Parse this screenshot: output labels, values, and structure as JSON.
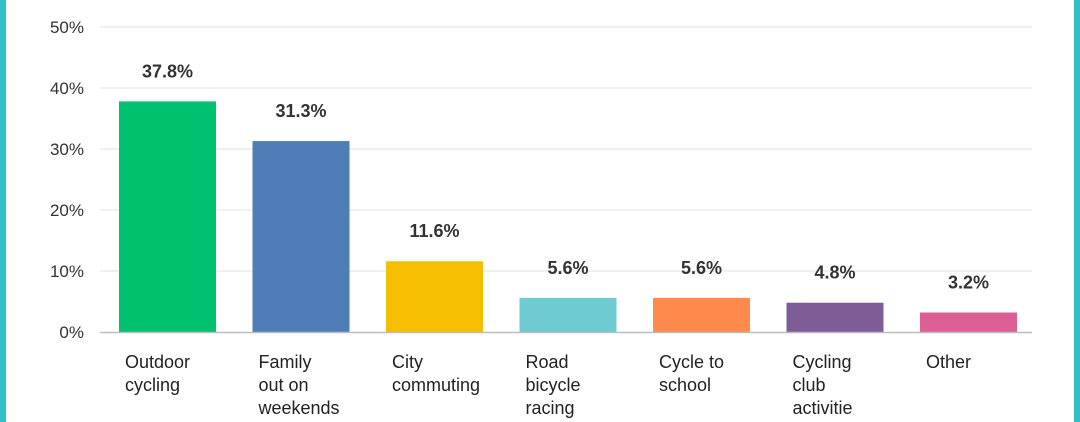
{
  "chart_data": {
    "type": "bar",
    "title": "",
    "xlabel": "",
    "ylabel": "",
    "ylim": [
      0,
      50
    ],
    "yticks": [
      {
        "value": 0,
        "label": "0%"
      },
      {
        "value": 10,
        "label": "10%"
      },
      {
        "value": 20,
        "label": "20%"
      },
      {
        "value": 30,
        "label": "30%"
      },
      {
        "value": 40,
        "label": "40%"
      },
      {
        "value": 50,
        "label": "50%"
      }
    ],
    "grid": true,
    "categories": [
      {
        "id": "outdoor-cycling",
        "lines": [
          "Outdoor",
          "cycling"
        ],
        "value": 37.8,
        "label": "37.8%",
        "color": "#00c16e"
      },
      {
        "id": "family-out-on-weekends",
        "lines": [
          "Family",
          "out on",
          "weekends"
        ],
        "value": 31.3,
        "label": "31.3%",
        "color": "#4e7db8"
      },
      {
        "id": "city-commuting",
        "lines": [
          "City",
          "commuting"
        ],
        "value": 11.6,
        "label": "11.6%",
        "color": "#f6be00"
      },
      {
        "id": "road-bicycle-racing",
        "lines": [
          "Road",
          "bicycle",
          "racing"
        ],
        "value": 5.6,
        "label": "5.6%",
        "color": "#6dcbd1"
      },
      {
        "id": "cycle-to-school",
        "lines": [
          "Cycle to",
          "school"
        ],
        "value": 5.6,
        "label": "5.6%",
        "color": "#ff8a4c"
      },
      {
        "id": "cycling-club-activitie",
        "lines": [
          "Cycling",
          "club",
          "activitie"
        ],
        "value": 4.8,
        "label": "4.8%",
        "color": "#7e5c98"
      },
      {
        "id": "other",
        "lines": [
          "Other"
        ],
        "value": 3.2,
        "label": "3.2%",
        "color": "#dd5f96"
      }
    ]
  }
}
